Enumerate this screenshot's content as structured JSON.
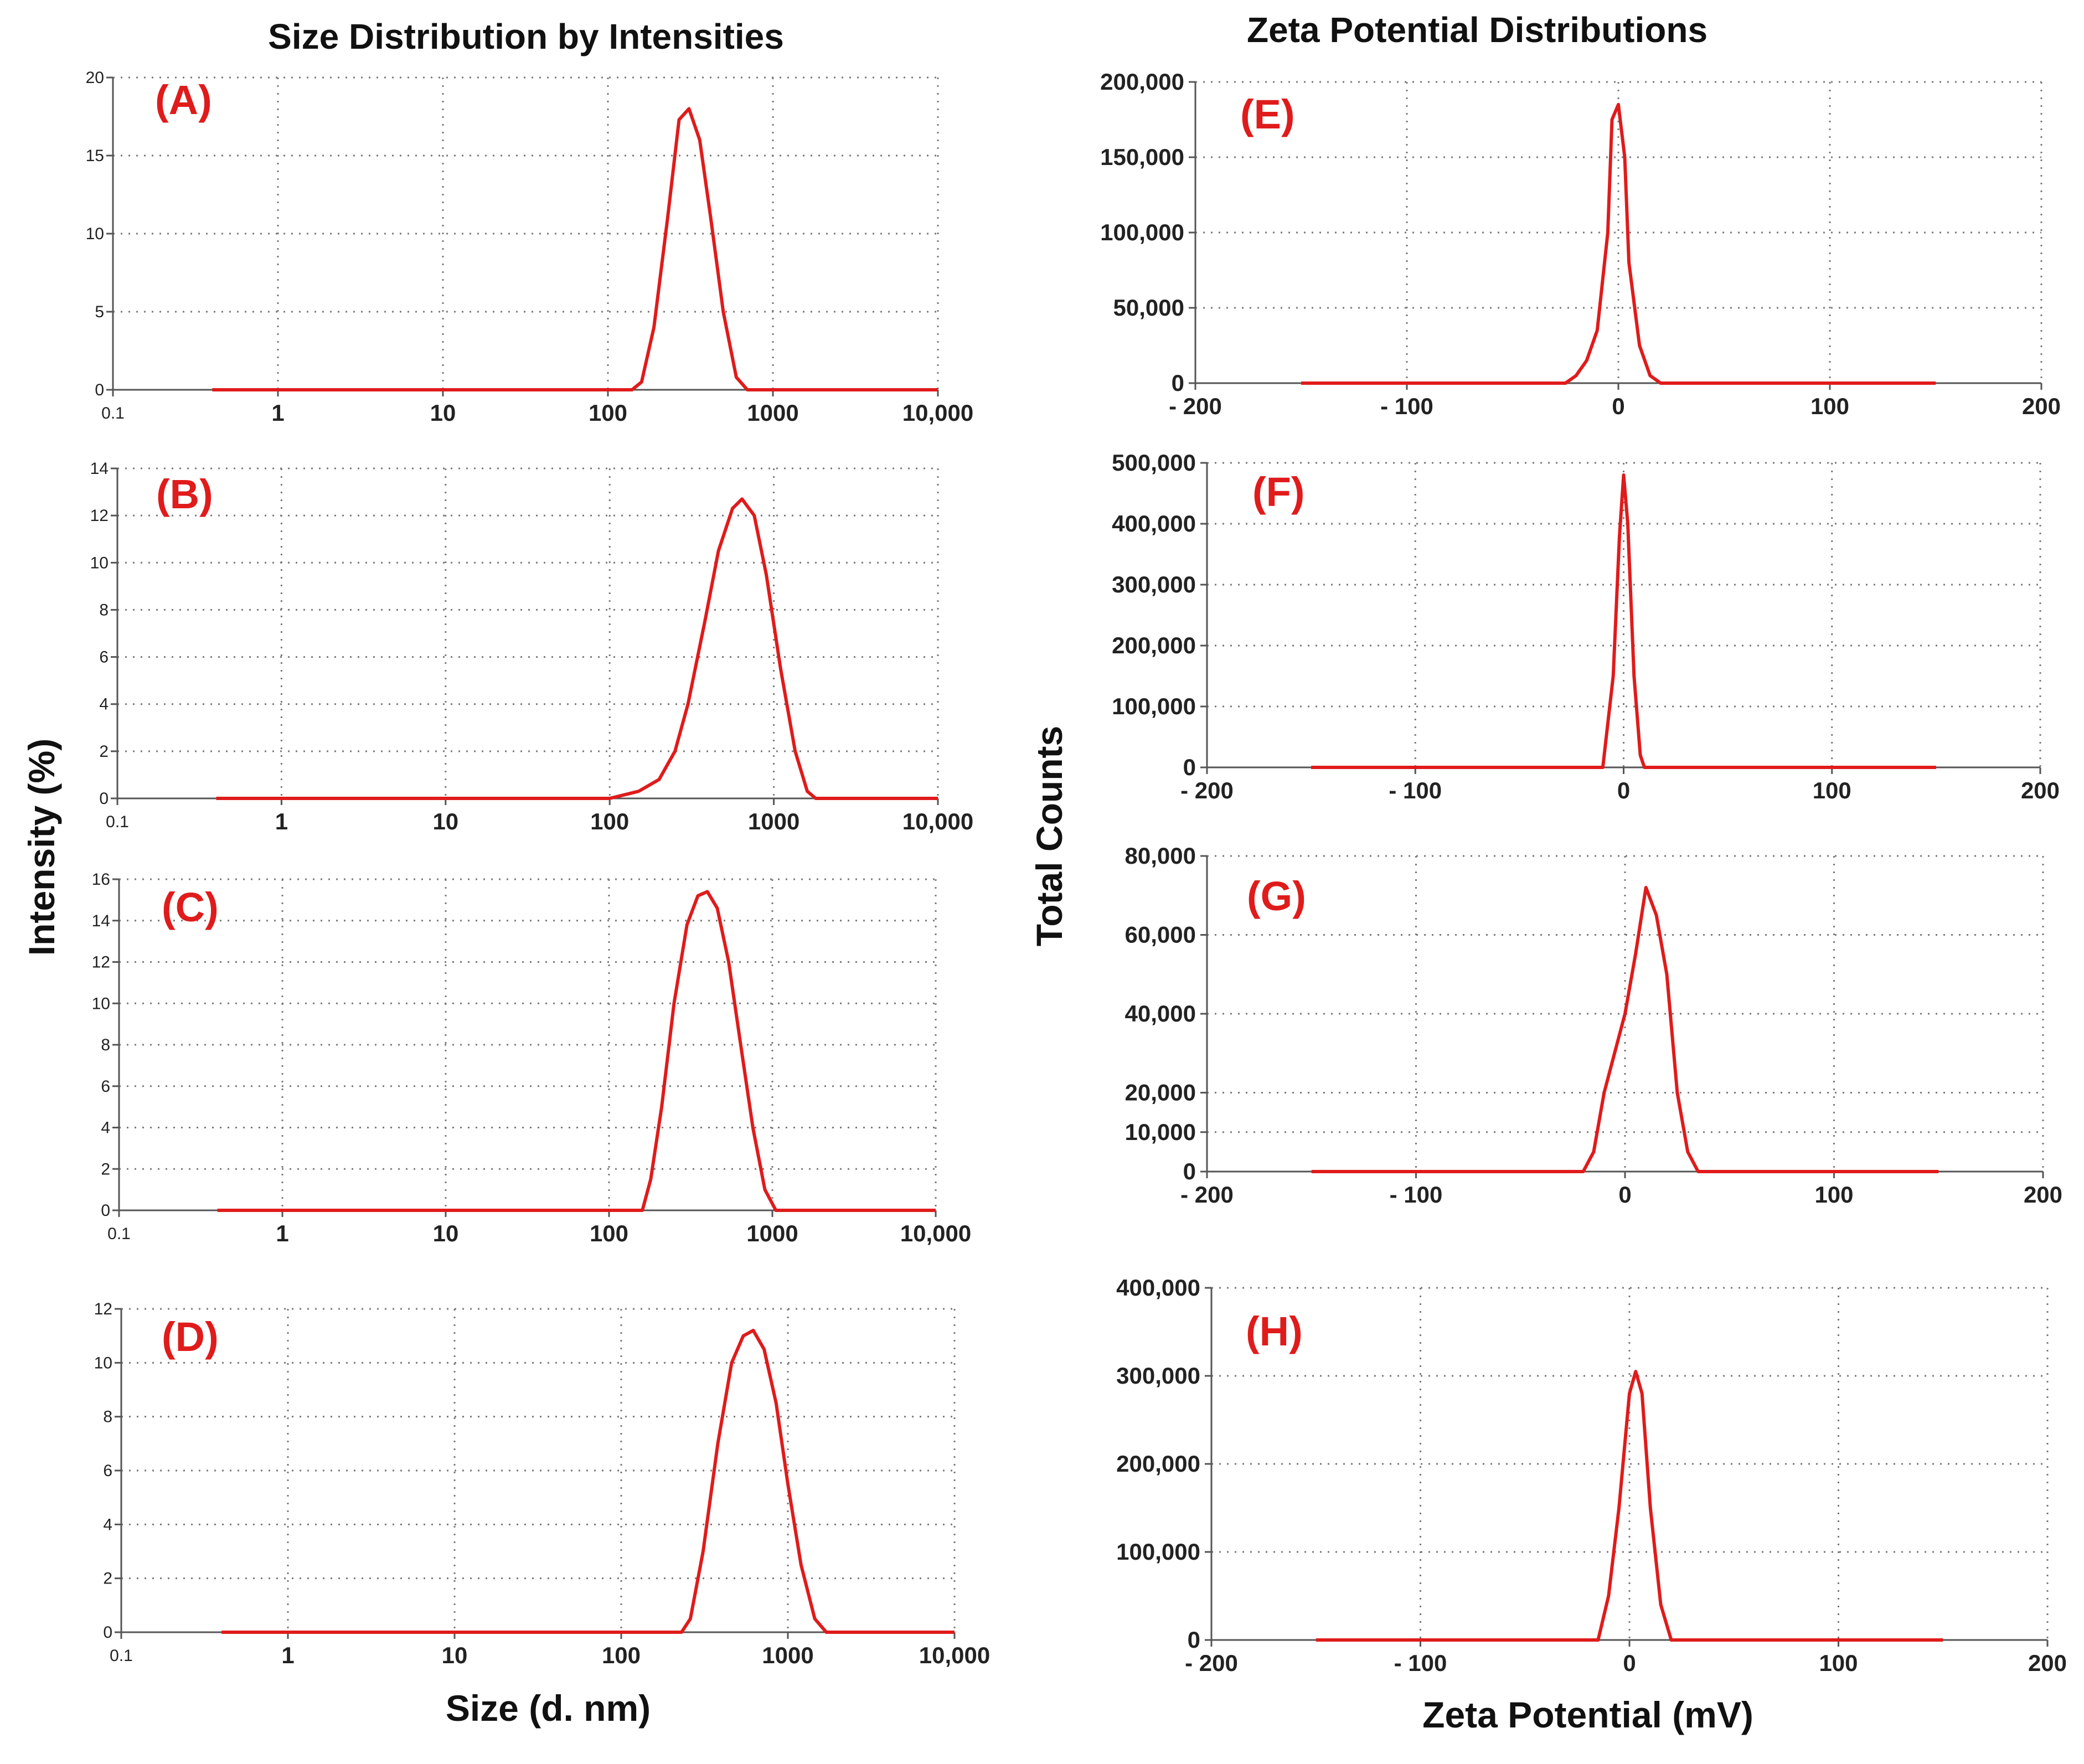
{
  "left_column_title": "Size Distribution by Intensities",
  "right_column_title": "Zeta Potential Distributions",
  "left_y_title": "Intensity (%)",
  "right_y_title": "Total Counts",
  "left_x_title": "Size  (d. nm)",
  "right_x_title": "Zeta Potential (mV)",
  "colors": {
    "curve": "#e01b1b",
    "label": "#e01b1b",
    "axis": "#555555",
    "grid": "#7a7a7a"
  },
  "chart_data": [
    {
      "id": "A",
      "label": "(A)",
      "type": "line",
      "xscale": "log",
      "xlabel": "Size (d. nm)",
      "ylabel": "Intensity (%)",
      "xlim": [
        0.1,
        10000
      ],
      "ylim": [
        0,
        20
      ],
      "xticks": [
        0.1,
        1,
        10,
        100,
        1000,
        10000
      ],
      "xtick_labels": [
        "0.1",
        "1",
        "10",
        "100",
        "1000",
        "10,000"
      ],
      "yticks": [
        0,
        5,
        10,
        15,
        20
      ],
      "ytick_labels": [
        "0",
        "5",
        "10",
        "15",
        "20"
      ],
      "series": [
        {
          "name": "A",
          "x": [
            0.4,
            140,
            160,
            190,
            230,
            270,
            310,
            360,
            420,
            500,
            600,
            700,
            800,
            10000
          ],
          "y": [
            0,
            0,
            0.5,
            4,
            11,
            17.3,
            18,
            16,
            11,
            5,
            0.8,
            0,
            0,
            0
          ]
        }
      ]
    },
    {
      "id": "B",
      "label": "(B)",
      "type": "line",
      "xscale": "log",
      "xlabel": "Size (d. nm)",
      "ylabel": "Intensity (%)",
      "xlim": [
        0.1,
        10000
      ],
      "ylim": [
        0,
        14
      ],
      "xticks": [
        0.1,
        1,
        10,
        100,
        1000,
        10000
      ],
      "xtick_labels": [
        "0.1",
        "1",
        "10",
        "100",
        "1000",
        "10,000"
      ],
      "yticks": [
        0,
        2,
        4,
        6,
        8,
        10,
        12,
        14
      ],
      "ytick_labels": [
        "0",
        "2",
        "4",
        "6",
        "8",
        "10",
        "12",
        "14"
      ],
      "series": [
        {
          "name": "B",
          "x": [
            0.4,
            100,
            150,
            200,
            250,
            300,
            380,
            460,
            560,
            640,
            760,
            900,
            1100,
            1350,
            1600,
            1800,
            10000
          ],
          "y": [
            0,
            0,
            0.3,
            0.8,
            2,
            4,
            7.5,
            10.5,
            12.3,
            12.7,
            12,
            9.5,
            5.5,
            2,
            0.3,
            0,
            0
          ]
        }
      ]
    },
    {
      "id": "C",
      "label": "(C)",
      "type": "line",
      "xscale": "log",
      "xlabel": "Size (d. nm)",
      "ylabel": "Intensity (%)",
      "xlim": [
        0.1,
        10000
      ],
      "ylim": [
        0,
        16
      ],
      "xticks": [
        0.1,
        1,
        10,
        100,
        1000,
        10000
      ],
      "xtick_labels": [
        "0.1",
        "1",
        "10",
        "100",
        "1000",
        "10,000"
      ],
      "yticks": [
        0,
        2,
        4,
        6,
        8,
        10,
        12,
        14,
        16
      ],
      "ytick_labels": [
        "0",
        "2",
        "4",
        "6",
        "8",
        "10",
        "12",
        "14",
        "16"
      ],
      "series": [
        {
          "name": "C",
          "x": [
            0.4,
            160,
            180,
            210,
            250,
            300,
            350,
            400,
            460,
            540,
            640,
            760,
            900,
            1050,
            10000
          ],
          "y": [
            0,
            0,
            1.5,
            5,
            10,
            13.8,
            15.2,
            15.4,
            14.6,
            12,
            8,
            4,
            1,
            0,
            0
          ]
        }
      ]
    },
    {
      "id": "D",
      "label": "(D)",
      "type": "line",
      "xscale": "log",
      "xlabel": "Size (d. nm)",
      "ylabel": "Intensity (%)",
      "xlim": [
        0.1,
        10000
      ],
      "ylim": [
        0,
        12
      ],
      "xticks": [
        0.1,
        1,
        10,
        100,
        1000,
        10000
      ],
      "xtick_labels": [
        "0.1",
        "1",
        "10",
        "100",
        "1000",
        "10,000"
      ],
      "yticks": [
        0,
        2,
        4,
        6,
        8,
        10,
        12
      ],
      "ytick_labels": [
        "0",
        "2",
        "4",
        "6",
        "8",
        "10",
        "12"
      ],
      "series": [
        {
          "name": "D",
          "x": [
            0.4,
            230,
            260,
            310,
            380,
            460,
            540,
            620,
            720,
            850,
            1000,
            1200,
            1450,
            1700,
            10000
          ],
          "y": [
            0,
            0,
            0.5,
            3,
            7,
            10,
            11,
            11.2,
            10.5,
            8.5,
            5.5,
            2.5,
            0.5,
            0,
            0
          ]
        }
      ]
    },
    {
      "id": "E",
      "label": "(E)",
      "type": "line",
      "xscale": "linear",
      "xlabel": "Zeta Potential (mV)",
      "ylabel": "Total Counts",
      "xlim": [
        -200,
        200
      ],
      "ylim": [
        0,
        200000
      ],
      "xticks": [
        -200,
        -100,
        0,
        100,
        200
      ],
      "xtick_labels": [
        "- 200",
        "- 100",
        "0",
        "100",
        "200"
      ],
      "yticks": [
        0,
        50000,
        100000,
        150000,
        200000
      ],
      "ytick_labels": [
        "0",
        "50,000",
        "100,000",
        "150,000",
        "200,000"
      ],
      "series": [
        {
          "name": "E",
          "x": [
            -150,
            -25,
            -20,
            -15,
            -10,
            -5,
            -3,
            0,
            3,
            5,
            10,
            15,
            20,
            150
          ],
          "y": [
            0,
            0,
            5000,
            15000,
            35000,
            100000,
            175000,
            185000,
            150000,
            80000,
            25000,
            5000,
            0,
            0
          ]
        }
      ]
    },
    {
      "id": "F",
      "label": "(F)",
      "type": "line",
      "xscale": "linear",
      "xlabel": "Zeta Potential (mV)",
      "ylabel": "Total Counts",
      "xlim": [
        -200,
        200
      ],
      "ylim": [
        0,
        500000
      ],
      "xticks": [
        -200,
        -100,
        0,
        100,
        200
      ],
      "xtick_labels": [
        "- 200",
        "- 100",
        "0",
        "100",
        "200"
      ],
      "yticks": [
        0,
        100000,
        200000,
        300000,
        400000,
        500000
      ],
      "ytick_labels": [
        "0",
        "100,000",
        "200,000",
        "300,000",
        "400,000",
        "500,000"
      ],
      "series": [
        {
          "name": "F",
          "x": [
            -150,
            -10,
            -5,
            -2,
            0,
            2,
            5,
            8,
            10,
            150
          ],
          "y": [
            0,
            0,
            150000,
            380000,
            480000,
            400000,
            150000,
            20000,
            0,
            0
          ]
        }
      ]
    },
    {
      "id": "G",
      "label": "(G)",
      "type": "line",
      "xscale": "linear",
      "xlabel": "Zeta Potential (mV)",
      "ylabel": "Total Counts",
      "xlim": [
        -200,
        200
      ],
      "ylim": [
        0,
        80000
      ],
      "xticks": [
        -200,
        -100,
        0,
        100,
        200
      ],
      "xtick_labels": [
        "- 200",
        "- 100",
        "0",
        "100",
        "200"
      ],
      "yticks": [
        0,
        10000,
        20000,
        40000,
        60000,
        80000
      ],
      "ytick_labels": [
        "0",
        "10,000",
        "20,000",
        "40,000",
        "60,000",
        "80,000"
      ],
      "series": [
        {
          "name": "G",
          "x": [
            -150,
            -20,
            -15,
            -10,
            -5,
            0,
            5,
            10,
            15,
            20,
            25,
            30,
            35,
            150
          ],
          "y": [
            0,
            0,
            5000,
            20000,
            30000,
            40000,
            55000,
            72000,
            65000,
            50000,
            20000,
            5000,
            0,
            0
          ]
        }
      ]
    },
    {
      "id": "H",
      "label": "(H)",
      "type": "line",
      "xscale": "linear",
      "xlabel": "Zeta Potential (mV)",
      "ylabel": "Total Counts",
      "xlim": [
        -200,
        200
      ],
      "ylim": [
        0,
        400000
      ],
      "xticks": [
        -200,
        -100,
        0,
        100,
        200
      ],
      "xtick_labels": [
        "- 200",
        "- 100",
        "0",
        "100",
        "200"
      ],
      "yticks": [
        0,
        100000,
        200000,
        300000,
        400000
      ],
      "ytick_labels": [
        "0",
        "100,000",
        "200,000",
        "300,000",
        "400,000"
      ],
      "series": [
        {
          "name": "H",
          "x": [
            -150,
            -15,
            -10,
            -5,
            0,
            3,
            6,
            10,
            15,
            20,
            150
          ],
          "y": [
            0,
            0,
            50000,
            150000,
            280000,
            305000,
            280000,
            150000,
            40000,
            0,
            0
          ]
        }
      ]
    }
  ]
}
